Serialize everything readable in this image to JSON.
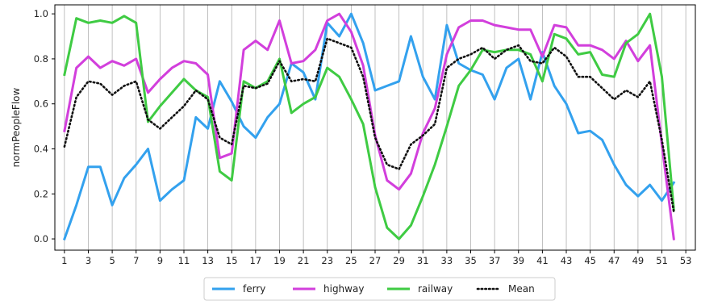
{
  "chart_data": {
    "type": "line",
    "title": "",
    "xlabel": "",
    "ylabel": "normPeopleFlow",
    "xlim": [
      0.2,
      53.8
    ],
    "ylim": [
      -0.05,
      1.04
    ],
    "x_ticks": [
      1,
      3,
      5,
      7,
      9,
      11,
      13,
      15,
      17,
      19,
      21,
      23,
      25,
      27,
      29,
      31,
      33,
      35,
      37,
      39,
      41,
      43,
      45,
      47,
      49,
      51,
      53
    ],
    "y_ticks": [
      0.0,
      0.2,
      0.4,
      0.6,
      0.8,
      1.0
    ],
    "y_tick_labels": [
      "0.0",
      "0.2",
      "0.4",
      "0.6",
      "0.8",
      "1.0"
    ],
    "grid": "vertical",
    "legend_position": "bottom-center",
    "x": [
      1,
      2,
      3,
      4,
      5,
      6,
      7,
      8,
      9,
      10,
      11,
      12,
      13,
      14,
      15,
      16,
      17,
      18,
      19,
      20,
      21,
      22,
      23,
      24,
      25,
      26,
      27,
      28,
      29,
      30,
      31,
      32,
      33,
      34,
      35,
      36,
      37,
      38,
      39,
      40,
      41,
      42,
      43,
      44,
      45,
      46,
      47,
      48,
      49,
      50,
      51,
      52
    ],
    "series": [
      {
        "name": "ferry",
        "color": "#33a1ee",
        "style": "solid",
        "values": [
          0.0,
          0.15,
          0.32,
          0.32,
          0.15,
          0.27,
          0.33,
          0.4,
          0.17,
          0.22,
          0.26,
          0.54,
          0.49,
          0.7,
          0.61,
          0.5,
          0.45,
          0.54,
          0.6,
          0.78,
          0.74,
          0.62,
          0.96,
          0.9,
          1.0,
          0.87,
          0.66,
          0.68,
          0.7,
          0.9,
          0.72,
          0.62,
          0.95,
          0.78,
          0.75,
          0.73,
          0.62,
          0.76,
          0.8,
          0.62,
          0.83,
          0.68,
          0.6,
          0.47,
          0.48,
          0.44,
          0.33,
          0.24,
          0.19,
          0.24,
          0.17,
          0.25
        ]
      },
      {
        "name": "highway",
        "color": "#d23fdc",
        "style": "solid",
        "values": [
          0.48,
          0.76,
          0.81,
          0.76,
          0.79,
          0.77,
          0.8,
          0.65,
          0.71,
          0.76,
          0.79,
          0.78,
          0.73,
          0.36,
          0.38,
          0.84,
          0.88,
          0.84,
          0.97,
          0.78,
          0.79,
          0.84,
          0.97,
          1.0,
          0.92,
          0.77,
          0.46,
          0.26,
          0.22,
          0.29,
          0.47,
          0.58,
          0.82,
          0.94,
          0.97,
          0.97,
          0.95,
          0.94,
          0.93,
          0.93,
          0.81,
          0.95,
          0.94,
          0.86,
          0.86,
          0.84,
          0.8,
          0.88,
          0.79,
          0.86,
          0.42,
          0.0
        ]
      },
      {
        "name": "railway",
        "color": "#3fcb43",
        "style": "solid",
        "values": [
          0.73,
          0.98,
          0.96,
          0.97,
          0.96,
          0.99,
          0.96,
          0.52,
          0.59,
          0.65,
          0.71,
          0.66,
          0.63,
          0.3,
          0.26,
          0.7,
          0.67,
          0.7,
          0.8,
          0.56,
          0.6,
          0.63,
          0.76,
          0.72,
          0.62,
          0.51,
          0.23,
          0.05,
          0.0,
          0.06,
          0.19,
          0.33,
          0.5,
          0.68,
          0.75,
          0.84,
          0.83,
          0.84,
          0.84,
          0.82,
          0.7,
          0.91,
          0.89,
          0.82,
          0.83,
          0.73,
          0.72,
          0.87,
          0.91,
          1.0,
          0.72,
          0.13
        ]
      },
      {
        "name": "Mean",
        "color": "#111111",
        "style": "dotted",
        "values": [
          0.41,
          0.63,
          0.7,
          0.69,
          0.64,
          0.68,
          0.7,
          0.53,
          0.49,
          0.54,
          0.59,
          0.66,
          0.62,
          0.45,
          0.42,
          0.68,
          0.67,
          0.69,
          0.79,
          0.7,
          0.71,
          0.7,
          0.89,
          0.87,
          0.85,
          0.72,
          0.45,
          0.33,
          0.31,
          0.42,
          0.46,
          0.51,
          0.76,
          0.8,
          0.82,
          0.85,
          0.8,
          0.84,
          0.86,
          0.79,
          0.78,
          0.85,
          0.81,
          0.72,
          0.72,
          0.67,
          0.62,
          0.66,
          0.63,
          0.7,
          0.44,
          0.12
        ]
      }
    ]
  }
}
